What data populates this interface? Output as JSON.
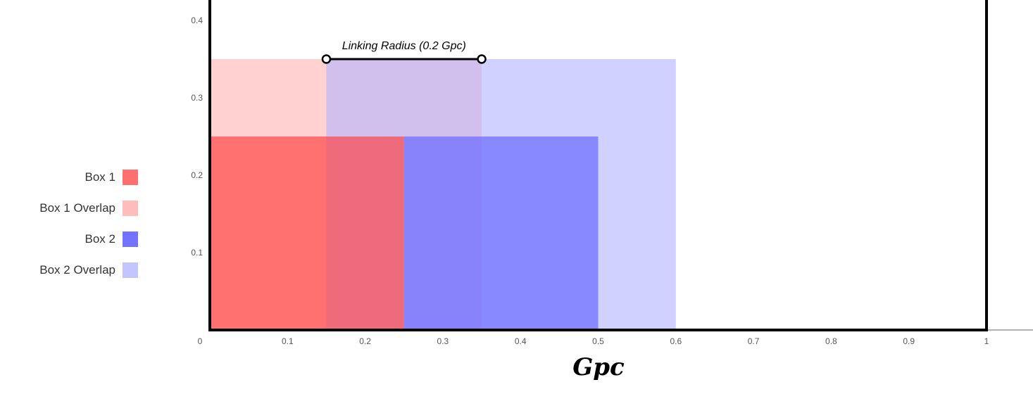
{
  "chart_data": {
    "type": "area",
    "xlabel": "Gpc",
    "ylabel": "",
    "xlim": [
      0,
      1
    ],
    "ylim": [
      0,
      0.4
    ],
    "x_ticks": [
      "0",
      "0.1",
      "0.2",
      "0.3",
      "0.4",
      "0.5",
      "0.6",
      "0.7",
      "0.8",
      "0.9",
      "1"
    ],
    "y_ticks": [
      "0.1",
      "0.2",
      "0.3",
      "0.4"
    ],
    "legend_position": "left",
    "legend": [
      {
        "name": "Box 1",
        "color": "#ff6f6f"
      },
      {
        "name": "Box 1 Overlap",
        "color": "#ffbcbc"
      },
      {
        "name": "Box 2",
        "color": "#7373ff"
      },
      {
        "name": "Box 2 Overlap",
        "color": "#c4c4ff"
      }
    ],
    "regions": [
      {
        "name": "Box 1 Overlap",
        "x": [
          0,
          0.35
        ],
        "y": [
          0,
          0.35
        ],
        "color": "#ffb3b3",
        "opacity": 0.6
      },
      {
        "name": "Box 2 Overlap",
        "x": [
          0.15,
          0.6
        ],
        "y": [
          0,
          0.35
        ],
        "color": "#b3b3ff",
        "opacity": 0.6
      },
      {
        "name": "Box 1",
        "x": [
          0,
          0.25
        ],
        "y": [
          0,
          0.25
        ],
        "color": "#ff3c3c",
        "opacity": 0.65
      },
      {
        "name": "Box 2",
        "x": [
          0.25,
          0.5
        ],
        "y": [
          0,
          0.25
        ],
        "color": "#6f6fff",
        "opacity": 0.75
      }
    ],
    "annotation": {
      "text": "Linking Radius (0.2 Gpc)",
      "x": [
        0.15,
        0.35
      ],
      "y": 0.35
    }
  }
}
